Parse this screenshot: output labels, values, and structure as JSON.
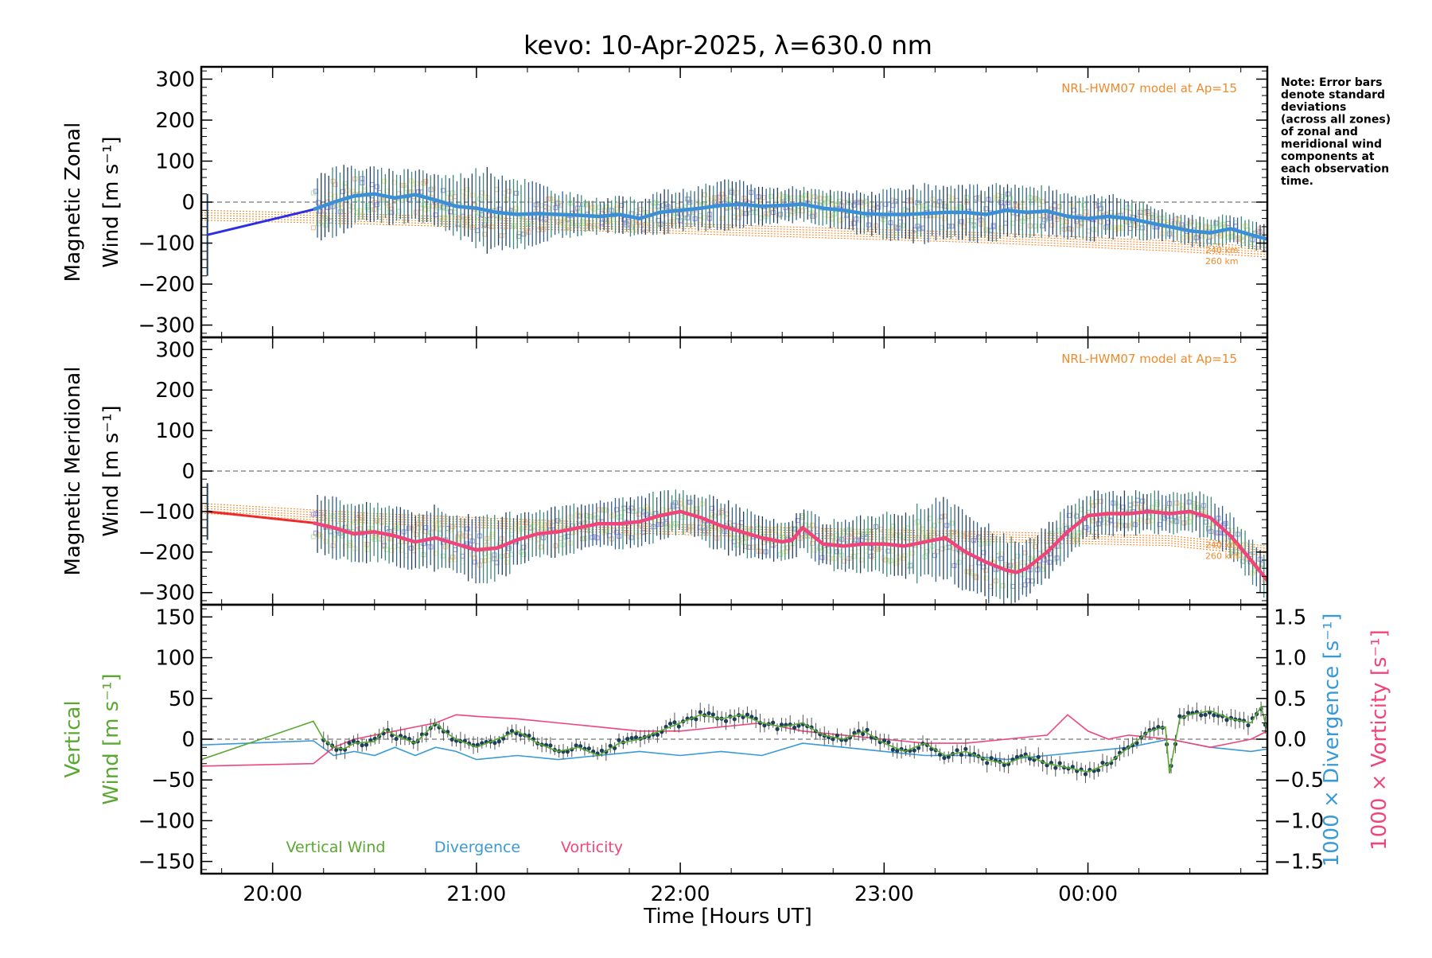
{
  "title": "kevo: 10-Apr-2025, λ=630.0 nm",
  "note": [
    "Note: Error bars",
    "denote standard",
    "deviations",
    "(across all zones)",
    "of zonal and",
    "meridional wind",
    "components at",
    "each observation",
    "time."
  ],
  "colors": {
    "model": "#f08a2c",
    "zonal_line": "#3a8fd6",
    "zonal_gap": "#2b2ee6",
    "meridional_line": "#f0457a",
    "meridional_gap": "#f02a2a",
    "vertical": "#5aa832",
    "divergence": "#3a9ad6",
    "vorticity": "#f0457a",
    "errorbar_dark": "#1e3f5a",
    "scatter_lavender": "#a7a3e6",
    "scatter_peach": "#f7c49d",
    "scatter_yellow": "#f3e8a6",
    "scatter_green": "#bdeab0"
  },
  "xaxis": {
    "label": "Time [Hours UT]",
    "range_hours": [
      19.65,
      24.88
    ],
    "ticks": [
      {
        "value": 20,
        "label": "20:00"
      },
      {
        "value": 21,
        "label": "21:00"
      },
      {
        "value": 22,
        "label": "22:00"
      },
      {
        "value": 23,
        "label": "23:00"
      },
      {
        "value": 24,
        "label": "00:00"
      }
    ]
  },
  "chart_data": [
    {
      "type": "line",
      "panel": "zonal",
      "ylabel_line1": "Magnetic Zonal",
      "ylabel_line2": "Wind [m s⁻¹]",
      "ylim": [
        -330,
        330
      ],
      "yticks": [
        300,
        200,
        100,
        0,
        -100,
        -200,
        -300
      ],
      "ytick_labels": [
        "300",
        "200",
        "100",
        "0",
        "−100",
        "−200",
        "−300"
      ],
      "model_label": "NRL-HWM07 model at Ap=15",
      "altitude_labels": [
        "240 km",
        "260 km"
      ],
      "series": [
        {
          "name": "Zonal wind",
          "x": [
            19.68,
            20.2,
            20.3,
            20.4,
            20.5,
            20.6,
            20.7,
            20.8,
            20.9,
            21.0,
            21.1,
            21.2,
            21.3,
            21.4,
            21.5,
            21.6,
            21.7,
            21.8,
            21.9,
            22.0,
            22.1,
            22.2,
            22.3,
            22.4,
            22.5,
            22.6,
            22.7,
            22.8,
            22.9,
            23.0,
            23.1,
            23.2,
            23.3,
            23.4,
            23.5,
            23.6,
            23.7,
            23.8,
            23.9,
            24.0,
            24.1,
            24.2,
            24.3,
            24.4,
            24.5,
            24.6,
            24.7,
            24.8,
            24.88
          ],
          "y": [
            -80,
            -18,
            0,
            15,
            20,
            10,
            18,
            5,
            -10,
            -15,
            -25,
            -30,
            -28,
            -30,
            -32,
            -35,
            -30,
            -40,
            -25,
            -20,
            -15,
            -8,
            -5,
            -10,
            -8,
            -5,
            -15,
            -20,
            -28,
            -30,
            -30,
            -28,
            -25,
            -25,
            -30,
            -20,
            -25,
            -22,
            -35,
            -40,
            -35,
            -40,
            -50,
            -60,
            -70,
            -75,
            -65,
            -80,
            -90
          ],
          "error": [
            100,
            80,
            80,
            70,
            60,
            60,
            65,
            60,
            70,
            90,
            95,
            85,
            70,
            55,
            45,
            40,
            40,
            45,
            50,
            45,
            50,
            55,
            55,
            45,
            40,
            40,
            40,
            45,
            50,
            55,
            60,
            65,
            60,
            60,
            65,
            65,
            60,
            55,
            55,
            55,
            50,
            45,
            40,
            35,
            35,
            35,
            35,
            35,
            35
          ]
        },
        {
          "name": "NRL-HWM07 model",
          "x": [
            19.65,
            20.5,
            21.5,
            22.5,
            23.5,
            24.4,
            24.88
          ],
          "y": [
            -20,
            -30,
            -45,
            -60,
            -75,
            -95,
            -110
          ]
        }
      ]
    },
    {
      "type": "line",
      "panel": "meridional",
      "ylabel_line1": "Magnetic Meridional",
      "ylabel_line2": "Wind [m s⁻¹]",
      "ylim": [
        -330,
        330
      ],
      "yticks": [
        300,
        200,
        100,
        0,
        -100,
        -200,
        -300
      ],
      "ytick_labels": [
        "300",
        "200",
        "100",
        "0",
        "−100",
        "−200",
        "−300"
      ],
      "model_label": "NRL-HWM07 model at Ap=15",
      "altitude_labels": [
        "240 km",
        "260 km"
      ],
      "series": [
        {
          "name": "Meridional wind",
          "x": [
            19.68,
            20.2,
            20.3,
            20.4,
            20.5,
            20.6,
            20.7,
            20.8,
            20.9,
            21.0,
            21.1,
            21.2,
            21.3,
            21.4,
            21.5,
            21.6,
            21.7,
            21.8,
            21.9,
            22.0,
            22.1,
            22.2,
            22.3,
            22.4,
            22.5,
            22.55,
            22.6,
            22.7,
            22.8,
            22.9,
            23.0,
            23.1,
            23.2,
            23.3,
            23.4,
            23.5,
            23.6,
            23.65,
            23.7,
            23.8,
            23.9,
            24.0,
            24.1,
            24.2,
            24.3,
            24.4,
            24.5,
            24.6,
            24.7,
            24.8,
            24.88
          ],
          "y": [
            -100,
            -128,
            -140,
            -155,
            -150,
            -160,
            -175,
            -165,
            -180,
            -195,
            -190,
            -170,
            -155,
            -150,
            -140,
            -130,
            -130,
            -125,
            -110,
            -100,
            -115,
            -135,
            -150,
            -165,
            -175,
            -170,
            -140,
            -180,
            -185,
            -180,
            -180,
            -185,
            -175,
            -165,
            -200,
            -225,
            -245,
            -250,
            -240,
            -200,
            -150,
            -110,
            -105,
            -105,
            -100,
            -105,
            -100,
            -115,
            -160,
            -220,
            -270
          ],
          "error": [
            70,
            70,
            70,
            70,
            65,
            65,
            70,
            75,
            75,
            80,
            75,
            65,
            60,
            55,
            55,
            55,
            60,
            60,
            55,
            50,
            55,
            60,
            60,
            55,
            50,
            50,
            50,
            55,
            60,
            65,
            70,
            80,
            90,
            95,
            95,
            90,
            80,
            75,
            70,
            65,
            60,
            55,
            50,
            50,
            50,
            50,
            50,
            50,
            50,
            50,
            50
          ]
        },
        {
          "name": "NRL-HWM07 model",
          "x": [
            19.65,
            20.5,
            21.5,
            22.5,
            23.5,
            24.4,
            24.88
          ],
          "y": [
            -80,
            -105,
            -125,
            -140,
            -150,
            -160,
            -185
          ]
        }
      ]
    },
    {
      "type": "line",
      "panel": "vertical",
      "ylabel_line1": "Vertical",
      "ylabel_line2": "Wind [m s⁻¹]",
      "ylim": [
        -165,
        165
      ],
      "yticks": [
        150,
        100,
        50,
        0,
        -50,
        -100,
        -150
      ],
      "ytick_labels": [
        "150",
        "100",
        "50",
        "0",
        "−50",
        "−100",
        "−150"
      ],
      "right_axis": {
        "ylim": [
          -1.65,
          1.65
        ],
        "yticks": [
          1.5,
          1.0,
          0.5,
          0.0,
          -0.5,
          -1.0,
          -1.5
        ],
        "ytick_labels": [
          "1.5",
          "1.0",
          "0.5",
          "0.0",
          "−0.5",
          "−1.0",
          "−1.5"
        ],
        "label_divergence": "1000 × Divergence [s⁻¹]",
        "label_vorticity": "1000 × Vorticity [s⁻¹]"
      },
      "legend": [
        "Vertical Wind",
        "Divergence",
        "Vorticity"
      ],
      "series": [
        {
          "name": "Vertical Wind",
          "x": [
            19.65,
            20.2,
            20.25,
            20.3,
            20.35,
            20.4,
            20.5,
            20.55,
            20.6,
            20.7,
            20.8,
            20.85,
            20.9,
            21.0,
            21.1,
            21.2,
            21.3,
            21.4,
            21.5,
            21.6,
            21.7,
            21.8,
            21.9,
            22.0,
            22.1,
            22.2,
            22.3,
            22.4,
            22.5,
            22.6,
            22.7,
            22.8,
            22.9,
            23.0,
            23.1,
            23.2,
            23.3,
            23.4,
            23.5,
            23.6,
            23.7,
            23.8,
            23.9,
            24.0,
            24.1,
            24.2,
            24.3,
            24.38,
            24.4,
            24.45,
            24.5,
            24.6,
            24.7,
            24.8,
            24.85,
            24.88
          ],
          "y": [
            -25,
            22,
            0,
            -10,
            -12,
            -5,
            -3,
            12,
            5,
            -5,
            20,
            8,
            0,
            -10,
            0,
            10,
            -5,
            -15,
            -10,
            -20,
            -5,
            0,
            10,
            20,
            30,
            25,
            30,
            20,
            15,
            20,
            5,
            0,
            10,
            -5,
            -15,
            -5,
            -20,
            -15,
            -25,
            -30,
            -20,
            -30,
            -35,
            -40,
            -30,
            -10,
            10,
            15,
            -42,
            25,
            30,
            35,
            25,
            20,
            40,
            10
          ]
        },
        {
          "name": "Divergence",
          "x": [
            19.65,
            20.2,
            20.3,
            20.4,
            20.5,
            20.6,
            20.7,
            20.8,
            20.9,
            21.0,
            21.2,
            21.4,
            21.6,
            21.8,
            22.0,
            22.2,
            22.4,
            22.6,
            22.8,
            23.0,
            23.2,
            23.4,
            23.6,
            23.8,
            24.0,
            24.2,
            24.4,
            24.6,
            24.8,
            24.88
          ],
          "y": [
            -0.07,
            -0.02,
            -0.2,
            -0.15,
            -0.2,
            -0.1,
            -0.2,
            -0.1,
            -0.15,
            -0.25,
            -0.2,
            -0.25,
            -0.2,
            -0.15,
            -0.2,
            -0.15,
            -0.2,
            -0.05,
            -0.1,
            -0.15,
            -0.2,
            -0.2,
            -0.25,
            -0.2,
            -0.15,
            -0.1,
            0.0,
            -0.1,
            -0.15,
            -0.12
          ]
        },
        {
          "name": "Vorticity",
          "x": [
            19.65,
            20.2,
            20.3,
            20.4,
            20.5,
            20.6,
            20.7,
            20.8,
            20.9,
            21.0,
            21.2,
            21.4,
            21.6,
            21.8,
            22.0,
            22.2,
            22.4,
            22.6,
            22.8,
            23.0,
            23.2,
            23.4,
            23.6,
            23.8,
            23.9,
            24.0,
            24.1,
            24.2,
            24.4,
            24.6,
            24.7,
            24.8,
            24.88
          ],
          "y": [
            -0.33,
            -0.3,
            -0.1,
            0.0,
            0.05,
            0.1,
            0.15,
            0.2,
            0.3,
            0.28,
            0.25,
            0.2,
            0.15,
            0.1,
            0.1,
            0.15,
            0.2,
            0.1,
            0.05,
            0.0,
            -0.05,
            -0.05,
            0.0,
            0.05,
            0.3,
            0.1,
            0.0,
            0.05,
            0.0,
            -0.1,
            -0.05,
            0.0,
            0.1
          ]
        }
      ]
    }
  ]
}
